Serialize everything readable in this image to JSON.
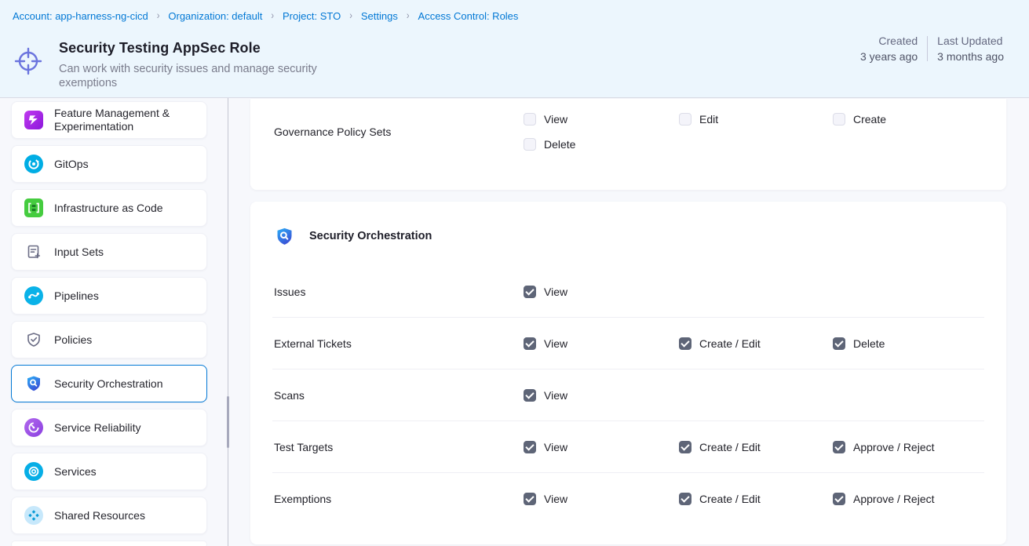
{
  "breadcrumb": {
    "separator": "›",
    "items": [
      {
        "label": "Account: app-harness-ng-cicd"
      },
      {
        "label": "Organization: default"
      },
      {
        "label": "Project: STO"
      },
      {
        "label": "Settings"
      },
      {
        "label": "Access Control: Roles"
      }
    ]
  },
  "header": {
    "title": "Security Testing AppSec Role",
    "description": "Can work with security issues and manage security exemptions",
    "created_label": "Created",
    "created_value": "3 years ago",
    "updated_label": "Last Updated",
    "updated_value": "3 months ago"
  },
  "sidebar": {
    "items": [
      {
        "label": "Feature Management & Experimentation",
        "icon": "feature-flags-icon",
        "selected": false
      },
      {
        "label": "GitOps",
        "icon": "gitops-icon",
        "selected": false
      },
      {
        "label": "Infrastructure as Code",
        "icon": "infrastructure-as-code-icon",
        "selected": false
      },
      {
        "label": "Input Sets",
        "icon": "input-sets-icon",
        "selected": false
      },
      {
        "label": "Pipelines",
        "icon": "pipelines-icon",
        "selected": false
      },
      {
        "label": "Policies",
        "icon": "policies-icon",
        "selected": false
      },
      {
        "label": "Security Orchestration",
        "icon": "security-orchestration-icon",
        "selected": true
      },
      {
        "label": "Service Reliability",
        "icon": "service-reliability-icon",
        "selected": false
      },
      {
        "label": "Services",
        "icon": "services-icon",
        "selected": false
      },
      {
        "label": "Shared Resources",
        "icon": "shared-resources-icon",
        "selected": false
      }
    ]
  },
  "main": {
    "governance_card": {
      "resource": "Governance Policy Sets",
      "permissions": [
        {
          "label": "View",
          "checked": false
        },
        {
          "label": "Edit",
          "checked": false
        },
        {
          "label": "Create",
          "checked": false
        },
        {
          "label": "Delete",
          "checked": false
        }
      ]
    },
    "security_card": {
      "section_title": "Security Orchestration",
      "section_icon": "security-orchestration-icon",
      "rows": [
        {
          "resource": "Issues",
          "permissions": [
            {
              "label": "View",
              "checked": true
            }
          ]
        },
        {
          "resource": "External Tickets",
          "permissions": [
            {
              "label": "View",
              "checked": true
            },
            {
              "label": "Create / Edit",
              "checked": true
            },
            {
              "label": "Delete",
              "checked": true
            }
          ]
        },
        {
          "resource": "Scans",
          "permissions": [
            {
              "label": "View",
              "checked": true
            }
          ]
        },
        {
          "resource": "Test Targets",
          "permissions": [
            {
              "label": "View",
              "checked": true
            },
            {
              "label": "Create / Edit",
              "checked": true
            },
            {
              "label": "Approve / Reject",
              "checked": true
            }
          ]
        },
        {
          "resource": "Exemptions",
          "permissions": [
            {
              "label": "View",
              "checked": true
            },
            {
              "label": "Create / Edit",
              "checked": true
            },
            {
              "label": "Approve / Reject",
              "checked": true
            }
          ]
        }
      ]
    }
  },
  "colors": {
    "accent_blue": "#0278D5",
    "banner_background": "#ECF6FD",
    "checkbox_checked": "#5E6577",
    "role_icon": "#6B74DE"
  }
}
